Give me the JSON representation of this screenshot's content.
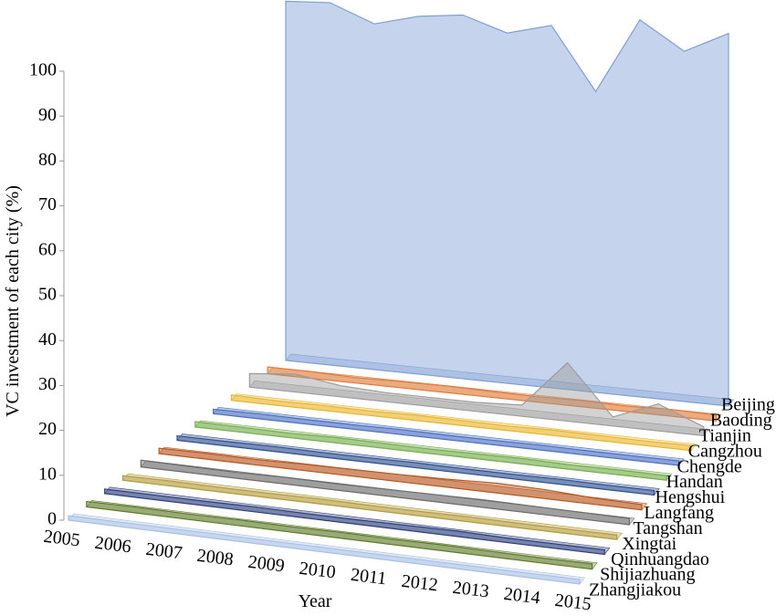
{
  "chart_data": {
    "type": "area3d",
    "y_label": "VC investment of each city (%)",
    "x_label": "Year",
    "x": [
      2005,
      2006,
      2007,
      2008,
      2009,
      2010,
      2011,
      2012,
      2013,
      2014,
      2015
    ],
    "ylim": [
      0,
      100
    ],
    "yticks": [
      0,
      10,
      20,
      30,
      40,
      50,
      60,
      70,
      80,
      90,
      100
    ],
    "series": [
      {
        "name": "Beijing",
        "color": "#7f9fd4",
        "values": [
          80,
          80.7,
          77,
          79.7,
          81,
          78,
          80.7,
          67,
          84,
          78,
          83
        ]
      },
      {
        "name": "Baoding",
        "color": "#e07b39",
        "values": [
          1.5,
          1.5,
          1.2,
          1.4,
          1.5,
          1.3,
          1.2,
          1.4,
          1.2,
          1.5,
          1.3
        ]
      },
      {
        "name": "Tianjin",
        "color": "#9c9c9c",
        "values": [
          3,
          4,
          2.5,
          2,
          2,
          2,
          2.5,
          13,
          2,
          6,
          2
        ]
      },
      {
        "name": "Cangzhou",
        "color": "#e8b52e",
        "values": [
          1.2,
          1.0,
          1.1,
          1.0,
          1.2,
          1.1,
          1.0,
          1.2,
          1.1,
          1.0,
          1.1
        ]
      },
      {
        "name": "Chengde",
        "color": "#4a6fc0",
        "values": [
          1.0,
          1.1,
          1.0,
          1.0,
          1.1,
          1.0,
          1.0,
          1.1,
          1.0,
          1.0,
          1.0
        ]
      },
      {
        "name": "Handan",
        "color": "#74ad4c",
        "values": [
          1.2,
          1.1,
          1.0,
          1.2,
          1.1,
          1.0,
          1.1,
          1.2,
          1.0,
          1.1,
          1.0
        ]
      },
      {
        "name": "Hengshui",
        "color": "#2e4f8f",
        "values": [
          1.0,
          1.0,
          1.1,
          1.0,
          1.0,
          1.1,
          1.0,
          1.0,
          1.1,
          1.0,
          1.0
        ]
      },
      {
        "name": "Langfang",
        "color": "#b8561f",
        "values": [
          1.2,
          1.3,
          1.2,
          1.4,
          1.5,
          1.6,
          1.8,
          2.2,
          2.0,
          1.4,
          1.2
        ]
      },
      {
        "name": "Tangshan",
        "color": "#6b6b6b",
        "values": [
          1.5,
          1.4,
          1.3,
          1.5,
          1.4,
          1.5,
          1.6,
          1.7,
          1.6,
          1.5,
          1.4
        ]
      },
      {
        "name": "Xingtai",
        "color": "#b39a3a",
        "values": [
          1.0,
          1.1,
          1.0,
          1.0,
          1.1,
          1.0,
          1.0,
          1.1,
          1.0,
          1.0,
          1.0
        ]
      },
      {
        "name": "Qinhuangdao",
        "color": "#2c3f7a",
        "values": [
          1.0,
          1.0,
          1.0,
          1.1,
          1.0,
          1.0,
          1.1,
          1.2,
          1.0,
          1.0,
          1.0
        ]
      },
      {
        "name": "Shijiazhuang",
        "color": "#5f7a2a",
        "values": [
          1.2,
          1.3,
          1.2,
          1.3,
          1.2,
          1.3,
          1.2,
          1.3,
          1.2,
          1.1,
          1.2
        ]
      },
      {
        "name": "Zhangjiakou",
        "color": "#a8bfe6",
        "values": [
          1.0,
          1.0,
          1.0,
          1.0,
          1.0,
          1.0,
          1.0,
          1.0,
          1.0,
          1.0,
          1.0
        ]
      }
    ]
  }
}
